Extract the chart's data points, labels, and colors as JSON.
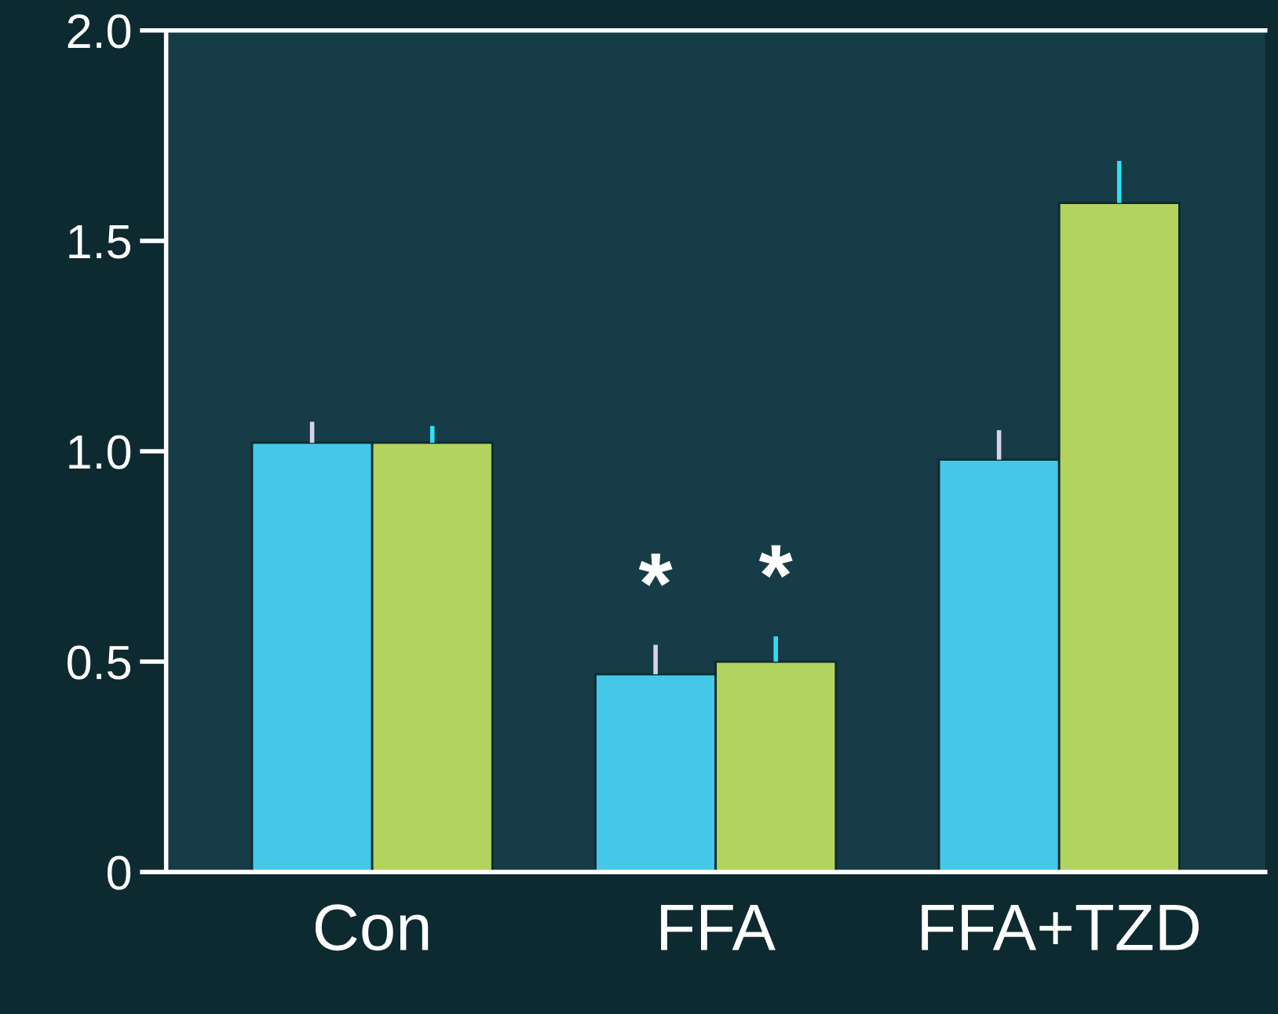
{
  "chart_data": {
    "type": "bar",
    "categories": [
      "Con",
      "FFA",
      "FFA+TZD"
    ],
    "series": [
      {
        "color": "#45c8e8",
        "values": [
          1.02,
          0.47,
          0.98
        ],
        "errors": [
          [
            1.02,
            1.07
          ],
          [
            0.47,
            0.54
          ],
          [
            0.98,
            1.05
          ]
        ]
      },
      {
        "color": "#b3d35f",
        "values": [
          1.02,
          0.5,
          1.59
        ],
        "errors": [
          [
            1.02,
            1.06
          ],
          [
            0.5,
            0.56
          ],
          [
            1.59,
            1.69
          ]
        ]
      }
    ],
    "ylim": [
      0,
      2.0
    ],
    "yticks": [
      0,
      0.5,
      {
        "value": 1.0,
        "label": "1.0"
      },
      1.5,
      {
        "value": 2.0,
        "label": "2.0"
      }
    ],
    "annotations": [
      "*",
      "*"
    ],
    "grid": false
  }
}
